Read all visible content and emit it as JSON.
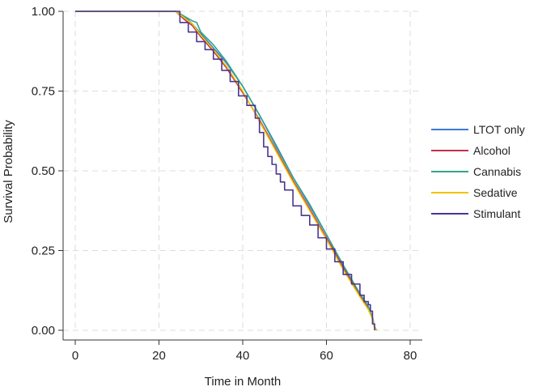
{
  "chart_data": {
    "type": "line",
    "step": true,
    "title": "",
    "xlabel": "Time in Month",
    "ylabel": "Survival Probability",
    "xlim": [
      0,
      80
    ],
    "ylim": [
      0,
      1
    ],
    "x_ticks": [
      0,
      20,
      40,
      60,
      80
    ],
    "x_tick_labels": [
      "0",
      "20",
      "40",
      "60",
      "80"
    ],
    "y_ticks": [
      0,
      0.25,
      0.5,
      0.75,
      1.0
    ],
    "y_tick_labels": [
      "0.00",
      "0.25",
      "0.50",
      "0.75",
      "1.00"
    ],
    "grid": true,
    "legend_position": "right",
    "series": [
      {
        "name": "LTOT only",
        "color": "#3a7bd5",
        "x": [
          0,
          24,
          26,
          28,
          30,
          33,
          36,
          40,
          44,
          48,
          52,
          56,
          60,
          64,
          68,
          70,
          71,
          71.5,
          72
        ],
        "y": [
          1.0,
          1.0,
          0.985,
          0.96,
          0.93,
          0.885,
          0.84,
          0.765,
          0.675,
          0.58,
          0.48,
          0.39,
          0.3,
          0.2,
          0.11,
          0.07,
          0.04,
          0.01,
          0.0
        ]
      },
      {
        "name": "Alcohol",
        "color": "#c0304b",
        "x": [
          0,
          24,
          26,
          28,
          30,
          33,
          36,
          40,
          44,
          48,
          52,
          56,
          60,
          64,
          68,
          70,
          71,
          71.5,
          72
        ],
        "y": [
          1.0,
          1.0,
          0.975,
          0.955,
          0.92,
          0.875,
          0.825,
          0.745,
          0.66,
          0.565,
          0.47,
          0.38,
          0.29,
          0.195,
          0.11,
          0.07,
          0.04,
          0.01,
          0.0
        ]
      },
      {
        "name": "Cannabis",
        "color": "#2fa58a",
        "x": [
          0,
          24,
          26,
          28,
          29,
          30,
          33,
          36,
          40,
          44,
          48,
          52,
          56,
          60,
          64,
          68,
          70,
          71,
          71.5,
          72
        ],
        "y": [
          1.0,
          1.0,
          0.985,
          0.97,
          0.965,
          0.935,
          0.895,
          0.845,
          0.765,
          0.675,
          0.575,
          0.48,
          0.395,
          0.3,
          0.205,
          0.115,
          0.075,
          0.04,
          0.01,
          0.0
        ]
      },
      {
        "name": "Sedative",
        "color": "#f2c200",
        "x": [
          0,
          24,
          26,
          28,
          30,
          33,
          36,
          40,
          44,
          48,
          52,
          56,
          60,
          64,
          68,
          70,
          71,
          71.5,
          72
        ],
        "y": [
          1.0,
          1.0,
          0.98,
          0.96,
          0.925,
          0.88,
          0.83,
          0.75,
          0.655,
          0.56,
          0.465,
          0.375,
          0.285,
          0.19,
          0.105,
          0.065,
          0.035,
          0.01,
          0.0
        ]
      },
      {
        "name": "Stimulant",
        "color": "#4a3591",
        "x": [
          0,
          24,
          25,
          27,
          29,
          31,
          33,
          35,
          37,
          39,
          41,
          43,
          44,
          45,
          46,
          47,
          48,
          49,
          50,
          52,
          54,
          56,
          58,
          60,
          62,
          64,
          66,
          68,
          69,
          70,
          70.5,
          71,
          71.5
        ],
        "y": [
          1.0,
          1.0,
          0.965,
          0.935,
          0.905,
          0.88,
          0.85,
          0.815,
          0.78,
          0.735,
          0.705,
          0.665,
          0.62,
          0.575,
          0.545,
          0.52,
          0.49,
          0.465,
          0.44,
          0.39,
          0.36,
          0.33,
          0.29,
          0.255,
          0.215,
          0.175,
          0.145,
          0.11,
          0.09,
          0.08,
          0.06,
          0.02,
          0.0
        ]
      }
    ]
  }
}
